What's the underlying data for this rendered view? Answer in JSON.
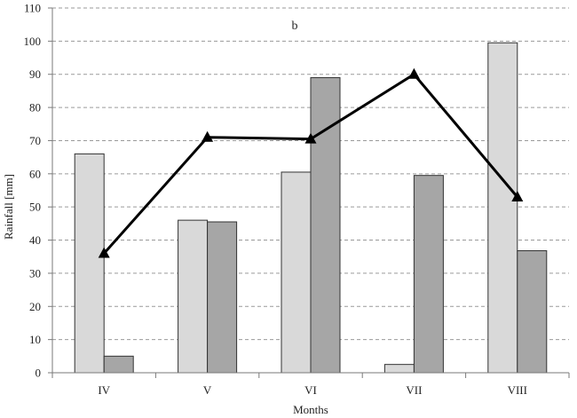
{
  "chart_data": {
    "type": "bar",
    "title": "b",
    "xlabel": "Months",
    "ylabel": "Rainfall [mm]",
    "ylim": [
      0,
      110
    ],
    "ytick_step": 10,
    "grid": true,
    "legend": "none",
    "categories": [
      "IV",
      "V",
      "VI",
      "VII",
      "VIII"
    ],
    "series": [
      {
        "type": "bar",
        "color": "#d9d9d9",
        "values": [
          66,
          46,
          60.5,
          2.5,
          99.5
        ]
      },
      {
        "type": "bar",
        "color": "#a6a6a6",
        "values": [
          5,
          45.5,
          89,
          59.5,
          36.8
        ]
      },
      {
        "type": "line",
        "color": "#000000",
        "marker": "triangle",
        "values": [
          36,
          71,
          70.5,
          90,
          53
        ]
      }
    ]
  }
}
